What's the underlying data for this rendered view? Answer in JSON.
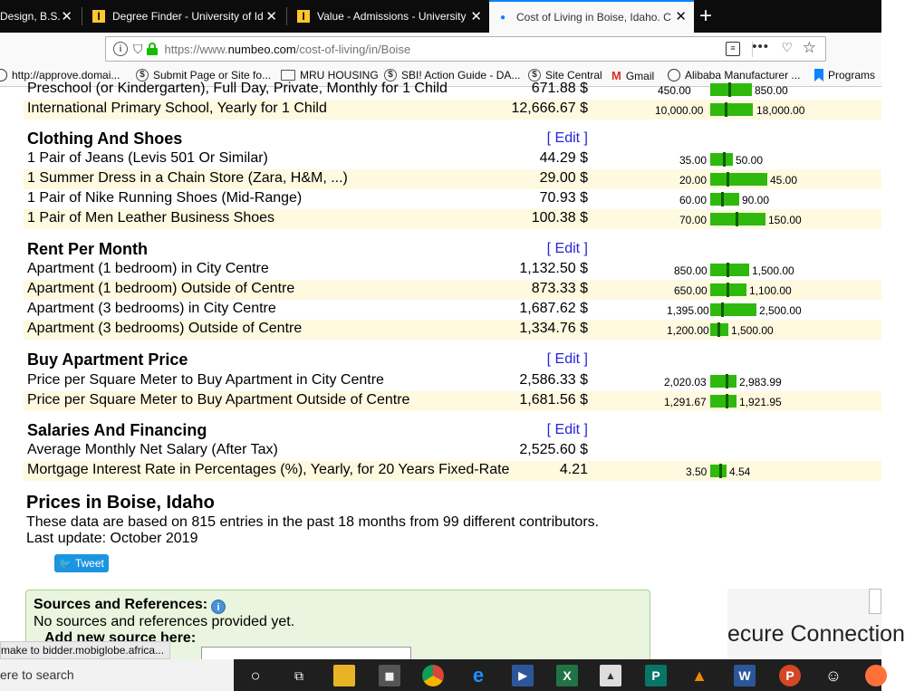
{
  "browser": {
    "tabs": [
      {
        "title": "Design, B.S.",
        "active": false
      },
      {
        "title": "Degree Finder - University of Id",
        "active": false
      },
      {
        "title": "Value - Admissions - University",
        "active": false
      },
      {
        "title": "Cost of Living in Boise, Idaho. C",
        "active": true
      }
    ],
    "url_prefix": "https://www.",
    "url_domain": "numbeo.com",
    "url_path": "/cost-of-living/in/Boise",
    "bookmarks": [
      {
        "label": "http://approve.domai...",
        "icon": "globe-icon"
      },
      {
        "label": "Submit Page or Site fo...",
        "icon": "dollar-icon"
      },
      {
        "label": "MRU HOUSING",
        "icon": "folder-icon"
      },
      {
        "label": "SBI! Action Guide - DA...",
        "icon": "dollar-icon"
      },
      {
        "label": "Site Central",
        "icon": "dollar-icon"
      },
      {
        "label": "Gmail",
        "icon": "gmail-icon"
      },
      {
        "label": "Alibaba Manufacturer ...",
        "icon": "globe-icon"
      },
      {
        "label": "Programs",
        "icon": "bookmark-icon"
      }
    ]
  },
  "top_partial": {
    "label": "Preschool (or Kindergarten), Full Day, Private, Monthly for 1 Child",
    "price": "671.88 $",
    "min": "450.00",
    "max": "850.00"
  },
  "top_row": {
    "label": "International Primary School, Yearly for 1 Child",
    "price": "12,666.67 $",
    "min": "10,000.00",
    "max": "18,000.00"
  },
  "edit_label": "[ Edit ]",
  "categories": [
    {
      "title": "Clothing And Shoes",
      "rows": [
        {
          "label": "1 Pair of Jeans (Levis 501 Or Similar)",
          "price": "44.29 $",
          "min": "35.00",
          "max": "50.00"
        },
        {
          "label": "1 Summer Dress in a Chain Store (Zara, H&M, ...)",
          "price": "29.00 $",
          "min": "20.00",
          "max": "45.00"
        },
        {
          "label": "1 Pair of Nike Running Shoes (Mid-Range)",
          "price": "70.93 $",
          "min": "60.00",
          "max": "90.00"
        },
        {
          "label": "1 Pair of Men Leather Business Shoes",
          "price": "100.38 $",
          "min": "70.00",
          "max": "150.00"
        }
      ]
    },
    {
      "title": "Rent Per Month",
      "rows": [
        {
          "label": "Apartment (1 bedroom) in City Centre",
          "price": "1,132.50 $",
          "min": "850.00",
          "max": "1,500.00"
        },
        {
          "label": "Apartment (1 bedroom) Outside of Centre",
          "price": "873.33 $",
          "min": "650.00",
          "max": "1,100.00"
        },
        {
          "label": "Apartment (3 bedrooms) in City Centre",
          "price": "1,687.62 $",
          "min": "1,395.00",
          "max": "2,500.00"
        },
        {
          "label": "Apartment (3 bedrooms) Outside of Centre",
          "price": "1,334.76 $",
          "min": "1,200.00",
          "max": "1,500.00"
        }
      ]
    },
    {
      "title": "Buy Apartment Price",
      "rows": [
        {
          "label": "Price per Square Meter to Buy Apartment in City Centre",
          "price": "2,586.33 $",
          "min": "2,020.03",
          "max": "2,983.99"
        },
        {
          "label": "Price per Square Meter to Buy Apartment Outside of Centre",
          "price": "1,681.56 $",
          "min": "1,291.67",
          "max": "1,921.95"
        }
      ]
    },
    {
      "title": "Salaries And Financing",
      "rows": [
        {
          "label": "Average Monthly Net Salary (After Tax)",
          "price": "2,525.60 $",
          "min": "",
          "max": ""
        },
        {
          "label": "Mortgage Interest Rate in Percentages (%), Yearly, for 20 Years Fixed-Rate",
          "price": "4.21",
          "min": "3.50",
          "max": "4.54"
        }
      ]
    }
  ],
  "prices": {
    "title": "Prices in Boise, Idaho",
    "desc": "These data are based on 815 entries in the past 18 months from 99 different contributors.",
    "update": "Last update: October 2019",
    "tweet": "Tweet"
  },
  "sources": {
    "heading": "Sources and References:",
    "none": "No sources and references provided yet.",
    "add": "Add new source here:"
  },
  "ad_text": "ecure Connection",
  "status_link": "make to bidder.mobiglobe.africa...",
  "taskbar": {
    "search": "ere to search"
  }
}
